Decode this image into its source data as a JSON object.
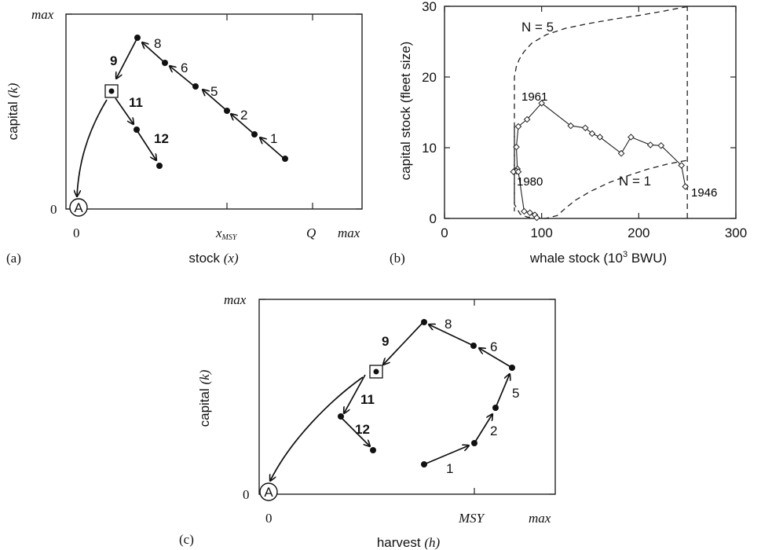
{
  "panel_a": {
    "panel_label": "(a)",
    "ylabel": "capital",
    "ylabel_sym": "(k)",
    "xlabel": "stock",
    "xlabel_sym": "(x)",
    "y_top": "max",
    "y_bottom": "0",
    "x_ticks": [
      "0",
      "x",
      "Q",
      "max"
    ],
    "x_msy_sub": "MSY",
    "start_label": "A",
    "labels": [
      "1",
      "2",
      "5",
      "6",
      "8",
      "9",
      "11",
      "12"
    ]
  },
  "panel_b": {
    "panel_label": "(b)",
    "ylabel": "capital stock (fleet size)",
    "xlabel": "whale stock (10",
    "xlabel_exp": "3",
    "xlabel_unit": " BWU)",
    "annotations": [
      "N = 5",
      "N = 1",
      "1961",
      "1980",
      "1946"
    ]
  },
  "panel_c": {
    "panel_label": "(c)",
    "ylabel": "capital",
    "ylabel_sym": "(k)",
    "xlabel": "harvest",
    "xlabel_sym": "(h)",
    "y_top": "max",
    "y_bottom": "0",
    "x_ticks": [
      "0",
      "MSY",
      "max"
    ],
    "start_label": "A",
    "labels": [
      "1",
      "2",
      "5",
      "6",
      "8",
      "9",
      "11",
      "12"
    ]
  },
  "chart_data": [
    {
      "type": "line",
      "panel": "a",
      "xlabel": "stock (x)",
      "ylabel": "capital (k)",
      "x_ticks": [
        "0",
        "xMSY",
        "Q",
        "max"
      ],
      "y_ticks": [
        "0",
        "max"
      ],
      "trajectory": [
        {
          "label": "1",
          "x": 0.67,
          "y": 0.23
        },
        {
          "label": "2",
          "x": 0.58,
          "y": 0.35
        },
        {
          "label": "5",
          "x": 0.49,
          "y": 0.46
        },
        {
          "label": "6",
          "x": 0.39,
          "y": 0.57
        },
        {
          "label": "8",
          "x": 0.29,
          "y": 0.66
        },
        {
          "label": "9",
          "x": 0.17,
          "y": 0.48
        },
        {
          "label": "11",
          "x": 0.21,
          "y": 0.31
        },
        {
          "label": "12",
          "x": 0.27,
          "y": 0.18
        }
      ],
      "qualitative": true
    },
    {
      "type": "line",
      "panel": "b",
      "xlabel": "whale stock (10^3 BWU)",
      "ylabel": "capital stock (fleet size)",
      "xlim": [
        0,
        300
      ],
      "ylim": [
        0,
        30
      ],
      "x_ticks": [
        0,
        100,
        200,
        300
      ],
      "y_ticks": [
        0,
        10,
        20,
        30
      ],
      "series": [
        {
          "x": [
            248,
            244,
            223,
            212,
            192,
            182,
            160,
            152,
            145,
            130,
            100,
            85,
            76,
            74,
            75,
            74,
            71,
            76,
            82,
            88,
            93,
            95
          ],
          "y": [
            4.5,
            7.5,
            10.3,
            10.4,
            11.5,
            9.2,
            11.5,
            12,
            12.8,
            13.1,
            16.3,
            14,
            13,
            10.1,
            7,
            6.7,
            6.6,
            6.6,
            1,
            0.8,
            0.5,
            0.1
          ]
        },
        {
          "name": "N = 5",
          "x": [
            250,
            248,
            240,
            225,
            200,
            175,
            150,
            125,
            105,
            90,
            82,
            77,
            74,
            72,
            72
          ],
          "y": [
            29.9,
            29.9,
            29.7,
            29.3,
            28.7,
            28.2,
            27.6,
            26.9,
            26.0,
            24.8,
            23.6,
            22.5,
            21.5,
            20,
            1
          ]
        },
        {
          "name": "N = 1",
          "x": [
            72,
            72,
            78,
            85,
            95,
            100,
            100,
            104,
            116,
            125,
            135,
            150,
            170,
            190,
            210,
            230,
            245,
            250
          ],
          "y": [
            13,
            2,
            0.6,
            0.2,
            0.05,
            0,
            0,
            0,
            0.4,
            1.5,
            2.6,
            3.8,
            5.1,
            6.1,
            7.0,
            7.7,
            8.1,
            8.2
          ]
        }
      ],
      "vertical_line": {
        "x": 250,
        "y": [
          0,
          30
        ]
      },
      "year_labels": [
        "1961",
        "1980",
        "1946"
      ]
    },
    {
      "type": "line",
      "panel": "c",
      "xlabel": "harvest (h)",
      "ylabel": "capital (k)",
      "x_ticks": [
        "0",
        "MSY",
        "max"
      ],
      "y_ticks": [
        "0",
        "max"
      ],
      "trajectory": [
        {
          "label": "1",
          "x": 0.53,
          "y": 0.18
        },
        {
          "label": "2",
          "x": 0.71,
          "y": 0.25
        },
        {
          "label": "5",
          "x": 0.78,
          "y": 0.42
        },
        {
          "label": "6",
          "x": 0.77,
          "y": 0.72
        },
        {
          "label": "8",
          "x": 0.53,
          "y": 0.82
        },
        {
          "label": "9",
          "x": 0.36,
          "y": 0.65
        },
        {
          "label": "11",
          "x": 0.24,
          "y": 0.44
        },
        {
          "label": "12",
          "x": 0.36,
          "y": 0.25
        }
      ],
      "qualitative": true
    }
  ]
}
